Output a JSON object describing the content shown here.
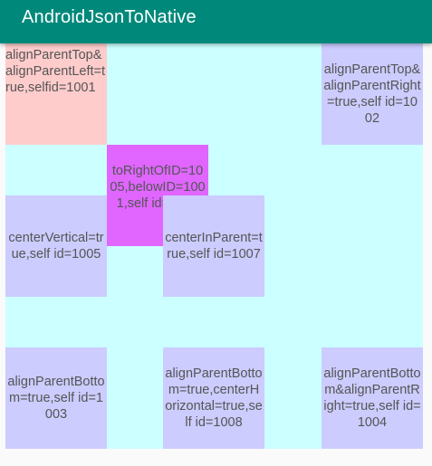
{
  "app": {
    "title": "AndroidJsonToNative"
  },
  "colors": {
    "toolbar": "#00897b",
    "layout_background": "#ccffff",
    "view_default": "#ccccff",
    "view_1001": "#ffcccc",
    "view_1006": "#e066ff",
    "text": "#555555"
  },
  "views": {
    "v1001": {
      "text": "alignParentTop&alignParentLeft=true,selfid=1001"
    },
    "v1002": {
      "text": "alignParentTop&alignParentRight=true,self id=1002"
    },
    "v1006": {
      "text": "toRightOfID=1005,belowID=1001,self id=1006"
    },
    "v1005": {
      "text": "centerVertical=true,self id=1005"
    },
    "v1007": {
      "text": "centerInParent=true,self id=1007"
    },
    "v1003": {
      "text": "alignParentBottom=true,self id=1003"
    },
    "v1008": {
      "text": "alignParentBottom=true,centerHorizontal=true,self id=1008"
    },
    "v1004": {
      "text": "alignParentBottom&alignParentRight=true,self id=1004"
    }
  }
}
